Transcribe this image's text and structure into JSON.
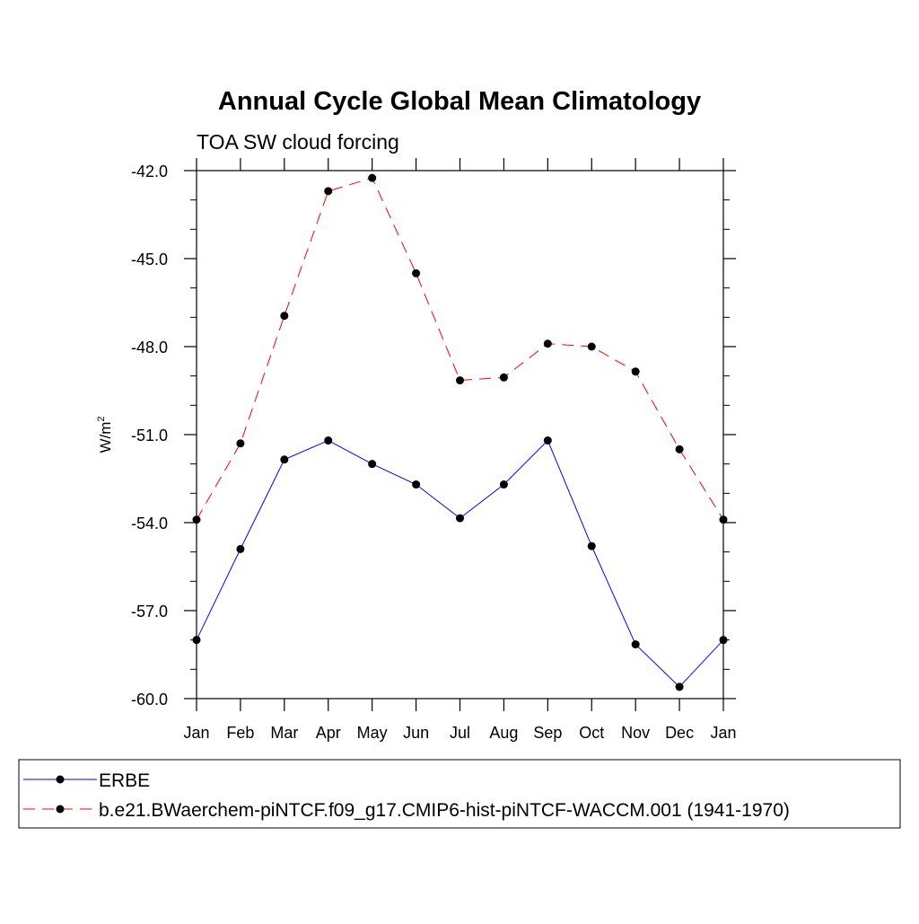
{
  "chart_data": {
    "type": "line",
    "title": "Annual Cycle Global Mean Climatology",
    "subtitle": "TOA SW cloud forcing",
    "ylabel": "W/m",
    "ylabel_sup": "2",
    "xlabel": "",
    "categories": [
      "Jan",
      "Feb",
      "Mar",
      "Apr",
      "May",
      "Jun",
      "Jul",
      "Aug",
      "Sep",
      "Oct",
      "Nov",
      "Dec",
      "Jan"
    ],
    "ylim": [
      -60.0,
      -42.0
    ],
    "yticks": [
      -60.0,
      -57.0,
      -54.0,
      -51.0,
      -48.0,
      -45.0,
      -42.0
    ],
    "ytick_labels": [
      "-60.0",
      "-57.0",
      "-54.0",
      "-51.0",
      "-48.0",
      "-45.0",
      "-42.0"
    ],
    "grid": false,
    "legend_position": "bottom",
    "series": [
      {
        "name": "ERBE",
        "color": "#0000ff",
        "dash": "solid",
        "values": [
          -58.0,
          -54.9,
          -51.85,
          -51.2,
          -52.0,
          -52.7,
          -53.85,
          -52.7,
          -51.2,
          -54.8,
          -58.15,
          -59.6,
          -58.0
        ]
      },
      {
        "name": "b.e21.BWaerchem-piNTCF.f09_g17.CMIP6-hist-piNTCF-WACCM.001 (1941-1970)",
        "color": "#ff0000",
        "dash": "dashed",
        "values": [
          -53.9,
          -51.3,
          -46.95,
          -42.7,
          -42.25,
          -45.5,
          -49.15,
          -49.05,
          -47.9,
          -48.0,
          -48.85,
          -51.5,
          -53.9
        ]
      }
    ]
  }
}
